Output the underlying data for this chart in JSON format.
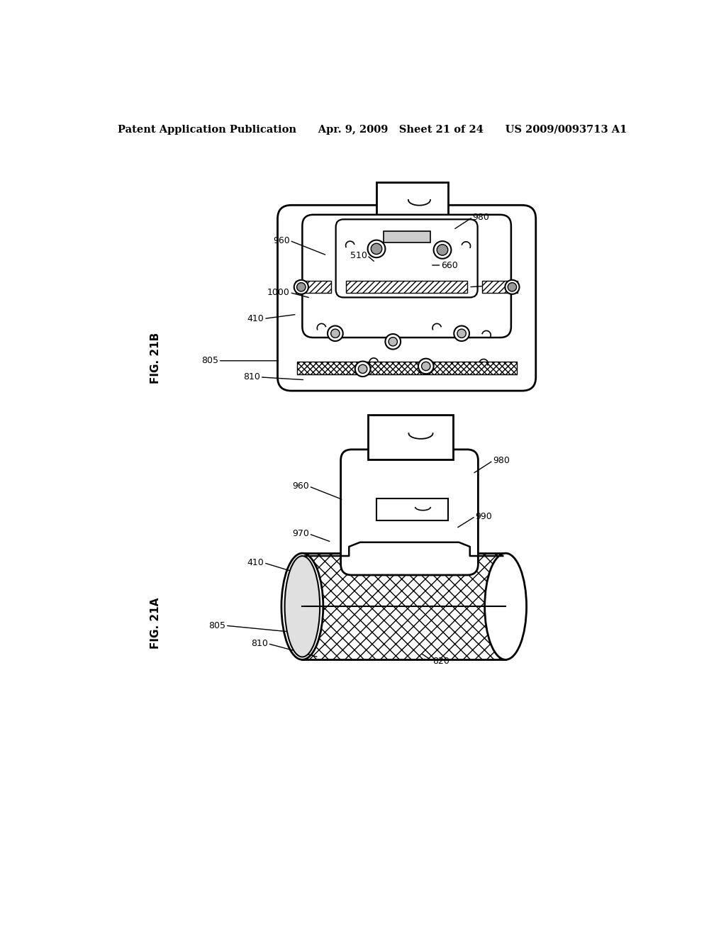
{
  "bg_color": "#ffffff",
  "header_text": "Patent Application Publication      Apr. 9, 2009   Sheet 21 of 24      US 2009/0093713 A1",
  "fig21b_label": "FIG. 21B",
  "fig21a_label": "FIG. 21A",
  "lc": "#000000"
}
